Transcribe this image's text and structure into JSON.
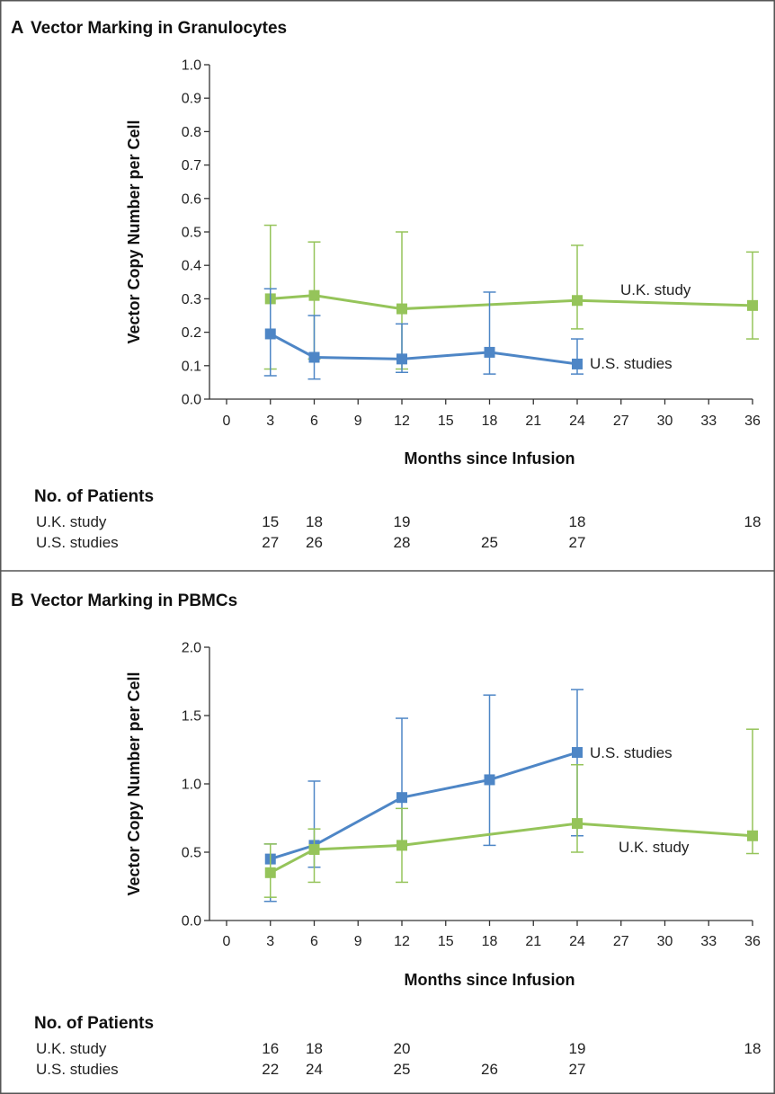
{
  "colors": {
    "uk": "#95c45a",
    "us": "#4e86c6",
    "axis": "#333333",
    "border": "#555555"
  },
  "panels": {
    "A": {
      "letter": "A",
      "title": "Vector Marking in Granulocytes",
      "patients_heading": "No. of Patients",
      "patients": [
        {
          "label": "U.K. study",
          "entries": [
            {
              "x": 3,
              "n": "15"
            },
            {
              "x": 6,
              "n": "18"
            },
            {
              "x": 12,
              "n": "19"
            },
            {
              "x": 24,
              "n": "18"
            },
            {
              "x": 36,
              "n": "18"
            }
          ]
        },
        {
          "label": "U.S. studies",
          "entries": [
            {
              "x": 3,
              "n": "27"
            },
            {
              "x": 6,
              "n": "26"
            },
            {
              "x": 12,
              "n": "28"
            },
            {
              "x": 18,
              "n": "25"
            },
            {
              "x": 24,
              "n": "27"
            }
          ]
        }
      ]
    },
    "B": {
      "letter": "B",
      "title": "Vector Marking in PBMCs",
      "patients_heading": "No. of Patients",
      "patients": [
        {
          "label": "U.K. study",
          "entries": [
            {
              "x": 3,
              "n": "16"
            },
            {
              "x": 6,
              "n": "18"
            },
            {
              "x": 12,
              "n": "20"
            },
            {
              "x": 24,
              "n": "19"
            },
            {
              "x": 36,
              "n": "18"
            }
          ]
        },
        {
          "label": "U.S. studies",
          "entries": [
            {
              "x": 3,
              "n": "22"
            },
            {
              "x": 6,
              "n": "24"
            },
            {
              "x": 12,
              "n": "25"
            },
            {
              "x": 18,
              "n": "26"
            },
            {
              "x": 24,
              "n": "27"
            }
          ]
        }
      ]
    }
  },
  "chart_data": [
    {
      "type": "line",
      "title": "Vector Marking in Granulocytes",
      "xlabel": "Months since Infusion",
      "ylabel": "Vector Copy Number per Cell",
      "xlim": [
        -1,
        36
      ],
      "ylim": [
        0,
        1.0
      ],
      "xticks": [
        0,
        3,
        6,
        9,
        12,
        15,
        18,
        21,
        24,
        27,
        30,
        33,
        36
      ],
      "yticks": [
        0.0,
        0.1,
        0.2,
        0.3,
        0.4,
        0.5,
        0.6,
        0.7,
        0.8,
        0.9,
        1.0
      ],
      "ytick_labels": [
        "0.0",
        "0.1",
        "0.2",
        "0.3",
        "0.4",
        "0.5",
        "0.6",
        "0.7",
        "0.8",
        "0.9",
        "1.0"
      ],
      "series": [
        {
          "name": "U.K. study",
          "key": "uk",
          "x": [
            3,
            6,
            12,
            24,
            36
          ],
          "y": [
            0.3,
            0.31,
            0.27,
            0.295,
            0.28
          ],
          "err_low": [
            0.09,
            0.12,
            0.09,
            0.21,
            0.18
          ],
          "err_high": [
            0.52,
            0.47,
            0.5,
            0.46,
            0.44
          ]
        },
        {
          "name": "U.S. studies",
          "key": "us",
          "x": [
            3,
            6,
            12,
            18,
            24
          ],
          "y": [
            0.195,
            0.125,
            0.12,
            0.14,
            0.105
          ],
          "err_low": [
            0.07,
            0.06,
            0.08,
            0.075,
            0.075
          ],
          "err_high": [
            0.33,
            0.25,
            0.225,
            0.32,
            0.18
          ]
        }
      ]
    },
    {
      "type": "line",
      "title": "Vector Marking in PBMCs",
      "xlabel": "Months since Infusion",
      "ylabel": "Vector Copy Number per Cell",
      "xlim": [
        -1,
        36
      ],
      "ylim": [
        0,
        2.0
      ],
      "xticks": [
        0,
        3,
        6,
        9,
        12,
        15,
        18,
        21,
        24,
        27,
        30,
        33,
        36
      ],
      "yticks": [
        0.0,
        0.5,
        1.0,
        1.5,
        2.0
      ],
      "ytick_labels": [
        "0.0",
        "0.5",
        "1.0",
        "1.5",
        "2.0"
      ],
      "series": [
        {
          "name": "U.S. studies",
          "key": "us",
          "x": [
            3,
            6,
            12,
            18,
            24
          ],
          "y": [
            0.45,
            0.55,
            0.9,
            1.03,
            1.23
          ],
          "err_low": [
            0.14,
            0.39,
            0.55,
            0.55,
            0.62
          ],
          "err_high": [
            0.56,
            1.02,
            1.48,
            1.65,
            1.69
          ]
        },
        {
          "name": "U.K. study",
          "key": "uk",
          "x": [
            3,
            6,
            12,
            24,
            36
          ],
          "y": [
            0.35,
            0.52,
            0.55,
            0.71,
            0.62
          ],
          "err_low": [
            0.17,
            0.28,
            0.28,
            0.5,
            0.49
          ],
          "err_high": [
            0.56,
            0.67,
            0.82,
            1.14,
            1.4
          ]
        }
      ]
    }
  ]
}
